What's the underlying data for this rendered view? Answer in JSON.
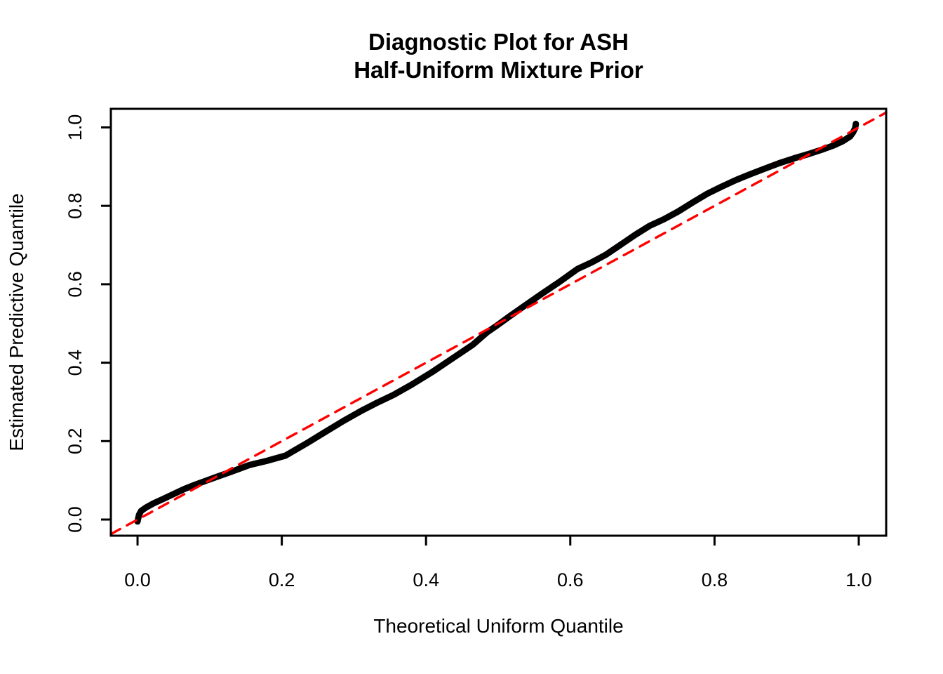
{
  "figure": {
    "background": "#FFFFFF",
    "title_line1": "Diagnostic Plot for ASH",
    "title_line2": "Half-Uniform Mixture Prior"
  },
  "chart_data": {
    "type": "line",
    "title": "Diagnostic Plot for ASH\nHalf-Uniform Mixture Prior",
    "xlabel": "Theoretical Uniform Quantile",
    "ylabel": "Estimated Predictive Quantile",
    "xticks": [
      0.0,
      0.2,
      0.4,
      0.6,
      0.8,
      1.0
    ],
    "xtick_labels": [
      "0.0",
      "0.2",
      "0.4",
      "0.6",
      "0.8",
      "1.0"
    ],
    "yticks": [
      0.0,
      0.2,
      0.4,
      0.6,
      0.8,
      1.0
    ],
    "ytick_labels": [
      "0.0",
      "0.2",
      "0.4",
      "0.6",
      "0.8",
      "1.0"
    ],
    "xlim": [
      -0.037,
      1.038
    ],
    "ylim": [
      -0.0412,
      1.0474
    ],
    "grid": false,
    "legend": "none",
    "colors": {
      "curve": "#000000",
      "reference": "#FF0000"
    },
    "series": [
      {
        "name": "predictive-quantile-curve",
        "color": "#000000",
        "line_style": "solid",
        "line_width": 9,
        "points": [
          [
            0.0,
            -0.005
          ],
          [
            0.002,
            0.012
          ],
          [
            0.005,
            0.022
          ],
          [
            0.012,
            0.031
          ],
          [
            0.022,
            0.041
          ],
          [
            0.035,
            0.052
          ],
          [
            0.05,
            0.065
          ],
          [
            0.065,
            0.078
          ],
          [
            0.08,
            0.089
          ],
          [
            0.095,
            0.099
          ],
          [
            0.11,
            0.109
          ],
          [
            0.13,
            0.122
          ],
          [
            0.155,
            0.139
          ],
          [
            0.18,
            0.15
          ],
          [
            0.205,
            0.163
          ],
          [
            0.235,
            0.195
          ],
          [
            0.26,
            0.223
          ],
          [
            0.285,
            0.251
          ],
          [
            0.31,
            0.277
          ],
          [
            0.33,
            0.296
          ],
          [
            0.355,
            0.318
          ],
          [
            0.38,
            0.344
          ],
          [
            0.41,
            0.378
          ],
          [
            0.44,
            0.415
          ],
          [
            0.465,
            0.446
          ],
          [
            0.485,
            0.478
          ],
          [
            0.5,
            0.497
          ],
          [
            0.515,
            0.517
          ],
          [
            0.535,
            0.543
          ],
          [
            0.56,
            0.575
          ],
          [
            0.585,
            0.606
          ],
          [
            0.61,
            0.639
          ],
          [
            0.63,
            0.656
          ],
          [
            0.65,
            0.676
          ],
          [
            0.67,
            0.701
          ],
          [
            0.69,
            0.726
          ],
          [
            0.71,
            0.749
          ],
          [
            0.73,
            0.766
          ],
          [
            0.75,
            0.786
          ],
          [
            0.77,
            0.809
          ],
          [
            0.79,
            0.831
          ],
          [
            0.81,
            0.849
          ],
          [
            0.83,
            0.866
          ],
          [
            0.85,
            0.881
          ],
          [
            0.87,
            0.895
          ],
          [
            0.89,
            0.909
          ],
          [
            0.91,
            0.921
          ],
          [
            0.93,
            0.932
          ],
          [
            0.95,
            0.944
          ],
          [
            0.965,
            0.954
          ],
          [
            0.978,
            0.965
          ],
          [
            0.988,
            0.977
          ],
          [
            0.992,
            0.987
          ],
          [
            0.995,
            0.998
          ],
          [
            0.996,
            1.009
          ]
        ]
      },
      {
        "name": "identity-reference-line",
        "color": "#FF0000",
        "line_style": "dashed",
        "line_width": 3.4,
        "points": [
          [
            -0.037,
            -0.037
          ],
          [
            1.038,
            1.038
          ]
        ]
      }
    ]
  }
}
